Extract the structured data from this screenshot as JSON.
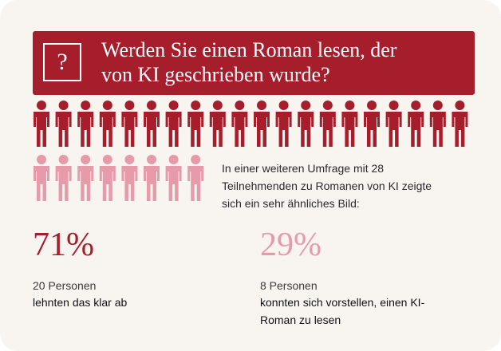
{
  "question_icon": "?",
  "question_lines": [
    "Werden Sie einen Roman lesen, der",
    "von KI geschrieben wurde?"
  ],
  "intro_lines": [
    "In einer weiteren Umfrage mit 28",
    "Teilnehmenden zu Romanen von KI zeigte",
    "sich ein sehr ähnliches Bild:"
  ],
  "stats": {
    "no": {
      "percent": "71%",
      "persons": "20 Personen",
      "desc": [
        "lehnten das klar ab"
      ]
    },
    "yes": {
      "percent": "29%",
      "persons": "8 Personen",
      "desc": [
        "konnten sich vorstellen, einen KI-",
        "Roman zu lesen"
      ]
    }
  },
  "colors": {
    "dark": "#a61d2b",
    "light": "#e69aaa",
    "banner": "#a61d2b"
  },
  "chart_data": {
    "type": "pictogram",
    "total": 28,
    "series": [
      {
        "name": "lehnten das klar ab",
        "count": 20,
        "percent": 71
      },
      {
        "name": "konnten sich vorstellen, einen KI-Roman zu lesen",
        "count": 8,
        "percent": 29
      }
    ]
  }
}
